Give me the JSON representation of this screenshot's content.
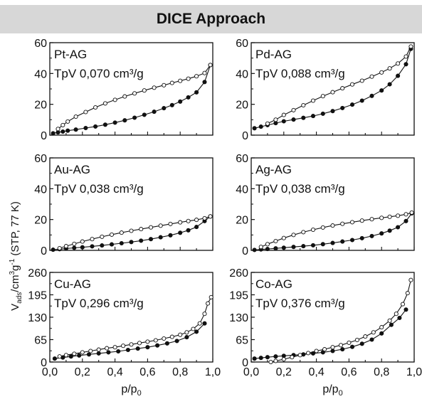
{
  "header": {
    "title": "DICE Approach"
  },
  "ylabel": {
    "main": "V",
    "sub": "ads",
    "rest1": "/cm",
    "sup3": "3",
    "mid": "g",
    "supm1": "-1",
    "tail": " (STP, 77 K)"
  },
  "colors": {
    "frame": "#111111",
    "header_bg": "#d7d7d7",
    "adsorption": "#111111",
    "desorption_fill": "#ffffff"
  },
  "chart_data": [
    {
      "type": "line",
      "name": "Pt-AG",
      "label": "Pt-AG",
      "tpv": "TpV 0,070 cm³/g",
      "xlim": [
        0,
        1.0
      ],
      "ylim": [
        0,
        60
      ],
      "yticks": [
        0,
        20,
        40,
        60
      ],
      "xticks": [],
      "xlabel": "",
      "series": [
        {
          "name": "adsorption",
          "marker": "filled",
          "x": [
            0.02,
            0.05,
            0.08,
            0.11,
            0.16,
            0.22,
            0.28,
            0.34,
            0.4,
            0.46,
            0.52,
            0.58,
            0.64,
            0.7,
            0.75,
            0.8,
            0.85,
            0.9,
            0.95,
            0.985
          ],
          "y": [
            1.2,
            1.8,
            2.3,
            2.9,
            3.6,
            4.6,
            5.6,
            6.8,
            8.1,
            9.6,
            11.3,
            13.2,
            15.2,
            17.5,
            19.5,
            21.8,
            24.5,
            27.8,
            34.5,
            45.5
          ]
        },
        {
          "name": "desorption",
          "marker": "open",
          "x": [
            0.985,
            0.95,
            0.9,
            0.85,
            0.8,
            0.75,
            0.7,
            0.64,
            0.58,
            0.52,
            0.46,
            0.4,
            0.34,
            0.28,
            0.22,
            0.16,
            0.11,
            0.08,
            0.05
          ],
          "y": [
            45.5,
            40.3,
            38.2,
            36.6,
            35.2,
            33.9,
            32.4,
            30.8,
            29.0,
            27.1,
            25.1,
            22.9,
            20.6,
            18.0,
            15.0,
            12.0,
            8.8,
            6.5,
            4.0
          ]
        }
      ]
    },
    {
      "type": "line",
      "name": "Pd-AG",
      "label": "Pd-AG",
      "tpv": "TpV 0,088 cm³/g",
      "xlim": [
        0,
        1.0
      ],
      "ylim": [
        0,
        60
      ],
      "yticks": [
        0,
        20,
        40,
        60
      ],
      "xticks": [],
      "xlabel": "",
      "series": [
        {
          "name": "adsorption",
          "marker": "filled",
          "x": [
            0.02,
            0.06,
            0.1,
            0.15,
            0.2,
            0.26,
            0.32,
            0.38,
            0.44,
            0.5,
            0.56,
            0.62,
            0.68,
            0.74,
            0.8,
            0.85,
            0.9,
            0.95,
            0.98
          ],
          "y": [
            4.5,
            5.5,
            6.5,
            7.8,
            9.0,
            10.1,
            11.2,
            12.4,
            13.9,
            15.6,
            17.6,
            19.8,
            22.4,
            25.5,
            29.0,
            33.0,
            38.5,
            46.0,
            56.0
          ]
        },
        {
          "name": "desorption",
          "marker": "open",
          "x": [
            0.98,
            0.95,
            0.9,
            0.85,
            0.8,
            0.74,
            0.68,
            0.62,
            0.56,
            0.5,
            0.44,
            0.38,
            0.32,
            0.26,
            0.2,
            0.15,
            0.1
          ],
          "y": [
            57.5,
            51.0,
            46.5,
            43.3,
            40.7,
            38.0,
            35.3,
            32.9,
            30.4,
            27.9,
            25.3,
            22.4,
            19.4,
            16.2,
            13.1,
            10.0,
            7.5
          ]
        }
      ]
    },
    {
      "type": "line",
      "name": "Au-AG",
      "label": "Au-AG",
      "tpv": "TpV 0,038 cm³/g",
      "xlim": [
        0,
        1.0
      ],
      "ylim": [
        0,
        60
      ],
      "yticks": [
        0,
        20,
        40,
        60
      ],
      "xticks": [],
      "xlabel": "",
      "series": [
        {
          "name": "adsorption",
          "marker": "filled",
          "x": [
            0.02,
            0.06,
            0.1,
            0.15,
            0.2,
            0.26,
            0.32,
            0.38,
            0.44,
            0.5,
            0.56,
            0.62,
            0.68,
            0.74,
            0.8,
            0.85,
            0.9,
            0.95,
            0.985
          ],
          "y": [
            0.4,
            0.8,
            1.2,
            1.6,
            2.0,
            2.6,
            3.2,
            3.9,
            4.6,
            5.4,
            6.3,
            7.3,
            8.5,
            9.8,
            11.4,
            13.0,
            15.2,
            19.0,
            22.0
          ]
        },
        {
          "name": "desorption",
          "marker": "open",
          "x": [
            0.985,
            0.95,
            0.9,
            0.85,
            0.8,
            0.74,
            0.68,
            0.62,
            0.56,
            0.5,
            0.44,
            0.38,
            0.32,
            0.26,
            0.2,
            0.15,
            0.1,
            0.06
          ],
          "y": [
            22.0,
            20.8,
            19.8,
            19.0,
            18.2,
            17.1,
            16.0,
            14.9,
            13.8,
            12.7,
            11.5,
            10.2,
            8.8,
            7.3,
            5.7,
            4.2,
            2.7,
            1.4
          ]
        }
      ]
    },
    {
      "type": "line",
      "name": "Ag-AG",
      "label": "Ag-AG",
      "tpv": "TpV 0,038 cm³/g",
      "xlim": [
        0,
        1.0
      ],
      "ylim": [
        0,
        60
      ],
      "yticks": [
        0,
        20,
        40,
        60
      ],
      "xticks": [],
      "xlabel": "",
      "series": [
        {
          "name": "adsorption",
          "marker": "filled",
          "x": [
            0.02,
            0.06,
            0.1,
            0.15,
            0.2,
            0.26,
            0.32,
            0.38,
            0.44,
            0.5,
            0.56,
            0.62,
            0.68,
            0.74,
            0.8,
            0.85,
            0.9,
            0.95,
            0.985
          ],
          "y": [
            0.3,
            0.6,
            0.9,
            1.3,
            1.7,
            2.2,
            2.7,
            3.3,
            4.0,
            4.8,
            5.7,
            6.7,
            7.9,
            9.3,
            11.0,
            12.8,
            15.0,
            19.0,
            24.0
          ]
        },
        {
          "name": "desorption",
          "marker": "open",
          "x": [
            0.985,
            0.95,
            0.9,
            0.85,
            0.8,
            0.74,
            0.68,
            0.62,
            0.56,
            0.5,
            0.44,
            0.38,
            0.32,
            0.26,
            0.2,
            0.15,
            0.1,
            0.06
          ],
          "y": [
            24.5,
            23.4,
            22.5,
            21.8,
            21.1,
            20.2,
            19.3,
            18.3,
            17.2,
            16.1,
            14.8,
            13.4,
            11.8,
            10.0,
            8.0,
            6.0,
            4.0,
            2.2
          ]
        }
      ]
    },
    {
      "type": "line",
      "name": "Cu-AG",
      "label": "Cu-AG",
      "tpv": "TpV 0,296 cm³/g",
      "xlim": [
        0,
        1.0
      ],
      "ylim": [
        0,
        260
      ],
      "yticks": [
        0,
        65,
        130,
        195,
        260
      ],
      "xticks": [
        "0,0",
        "0,2",
        "0,4",
        "0,6",
        "0,8",
        "1,0"
      ],
      "xlabel": "p/p",
      "xlabel_sub": "0",
      "series": [
        {
          "name": "adsorption",
          "marker": "filled",
          "x": [
            0.03,
            0.08,
            0.13,
            0.18,
            0.24,
            0.3,
            0.36,
            0.42,
            0.48,
            0.54,
            0.6,
            0.66,
            0.72,
            0.78,
            0.84,
            0.9,
            0.95
          ],
          "y": [
            10,
            13,
            16,
            19,
            22,
            25,
            28,
            31,
            35,
            39,
            43,
            48,
            54,
            61,
            72,
            88,
            112
          ]
        },
        {
          "name": "desorption",
          "marker": "open",
          "x": [
            0.99,
            0.97,
            0.95,
            0.92,
            0.88,
            0.84,
            0.8,
            0.75,
            0.7,
            0.65,
            0.6,
            0.55,
            0.5,
            0.45,
            0.4,
            0.35,
            0.3,
            0.25,
            0.2,
            0.15,
            0.1,
            0.06
          ],
          "y": [
            188,
            170,
            140,
            112,
            96,
            86,
            79,
            73,
            68,
            63,
            59,
            55,
            51,
            47,
            43,
            40,
            36,
            32,
            28,
            24,
            20,
            16
          ]
        }
      ]
    },
    {
      "type": "line",
      "name": "Co-AG",
      "label": "Co-AG",
      "tpv": "TpV 0,376 cm³/g",
      "xlim": [
        0,
        1.0
      ],
      "ylim": [
        0,
        260
      ],
      "yticks": [
        0,
        65,
        130,
        195,
        260
      ],
      "xticks": [
        "0,0",
        "0,2",
        "0,4",
        "0,6",
        "0,8",
        "1,0"
      ],
      "xlabel": "p/p",
      "xlabel_sub": "0",
      "series": [
        {
          "name": "adsorption",
          "marker": "filled",
          "x": [
            0.02,
            0.06,
            0.1,
            0.15,
            0.2,
            0.26,
            0.32,
            0.38,
            0.44,
            0.5,
            0.56,
            0.62,
            0.68,
            0.74,
            0.8,
            0.86,
            0.91,
            0.95
          ],
          "y": [
            10,
            12,
            14,
            16,
            18,
            20,
            22,
            25,
            28,
            32,
            37,
            44,
            53,
            65,
            83,
            108,
            128,
            152
          ]
        },
        {
          "name": "desorption",
          "marker": "open",
          "x": [
            0.98,
            0.96,
            0.93,
            0.89,
            0.85,
            0.8,
            0.75,
            0.7,
            0.65,
            0.6,
            0.55,
            0.5,
            0.45,
            0.4,
            0.35,
            0.3,
            0.25,
            0.2,
            0.15,
            0.12
          ],
          "y": [
            238,
            200,
            168,
            140,
            120,
            101,
            86,
            74,
            64,
            56,
            49,
            43,
            37,
            32,
            26,
            20,
            14,
            8,
            3,
            0
          ]
        }
      ]
    }
  ]
}
